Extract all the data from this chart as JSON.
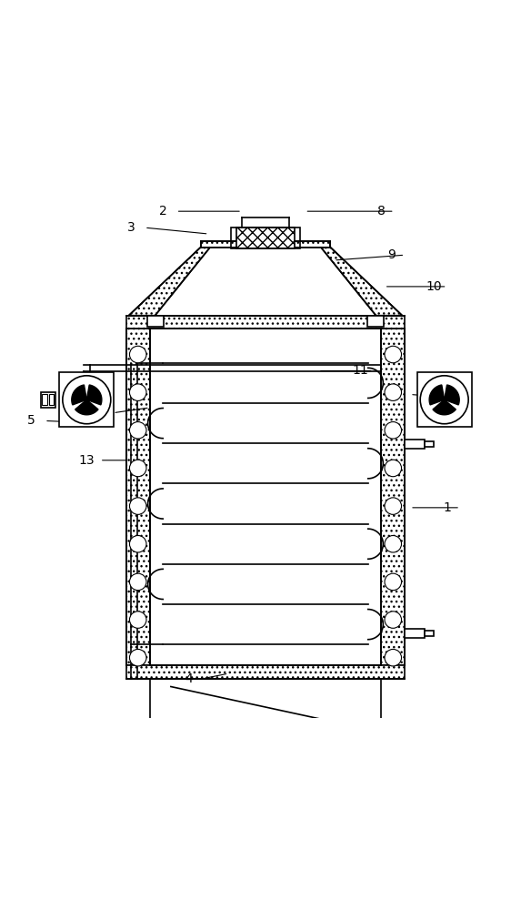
{
  "fig_width": 5.84,
  "fig_height": 10.0,
  "dpi": 100,
  "bg_color": "#ffffff",
  "line_color": "#000000"
}
